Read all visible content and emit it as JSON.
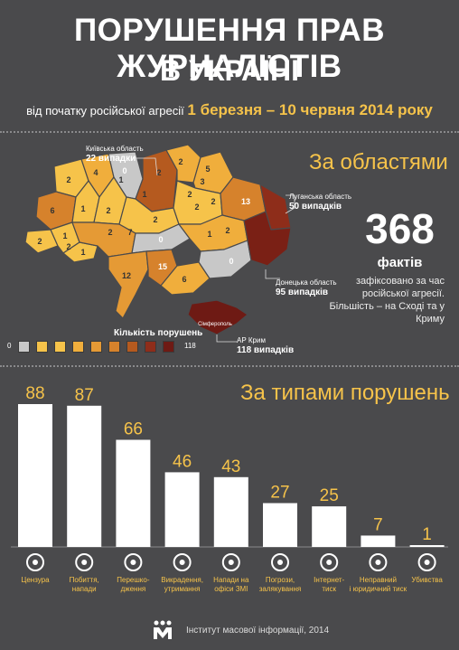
{
  "header": {
    "title_line1": "ПОРУШЕННЯ ПРАВ ЖУРНАЛІСТІВ",
    "title_line2": "В УКРАЇНІ",
    "subtitle_prefix": "від початку російської агресії",
    "subtitle_dates": "1 березня – 10 червня 2014 року"
  },
  "map_section": {
    "title": "За областями",
    "region_values": [
      "2",
      "4",
      "1",
      "0",
      "2",
      "6",
      "1",
      "2",
      "5",
      "3",
      "2",
      "2",
      "2",
      "2",
      "0",
      "1",
      "2",
      "2",
      "1",
      "7",
      "2",
      "13",
      "1",
      "1",
      "2",
      "2",
      "6",
      "12",
      "15",
      "0"
    ],
    "callouts": {
      "kyiv": {
        "label": "Київська область",
        "value": "22 випадки"
      },
      "luhansk": {
        "label": "Луганська область",
        "value": "50 випадків"
      },
      "donetsk": {
        "label": "Донецька область",
        "value": "95 випадків"
      },
      "crimea": {
        "label": "АР Крим",
        "value": "118 випадків"
      }
    },
    "small_labels": {
      "simferopol": "Сімферополь"
    },
    "total": {
      "number": "368",
      "unit": "фактів",
      "desc": "зафіксовано за час російської агресії. Більшість – на Сході та у Криму"
    },
    "legend": {
      "title": "Кількість порушень",
      "min": "0",
      "max": "118",
      "colors": [
        "#c8c8c8",
        "#f6c34a",
        "#f6c34a",
        "#f0ae3c",
        "#e59a35",
        "#d6822c",
        "#b55a1f",
        "#8e2d1a",
        "#6e1a14"
      ]
    }
  },
  "types_section": {
    "title": "За типами порушень",
    "icons": [
      "phone-icon",
      "fight-icon",
      "camera-icon",
      "handcuffs-icon",
      "office-icon",
      "fist-icon",
      "computer-icon",
      "gavel-icon",
      "pistol-icon"
    ]
  },
  "chart_data": {
    "type": "bar",
    "title": "За типами порушень",
    "categories": [
      "Цензура",
      "Побиття, напади",
      "Перешко-дження",
      "Викрадення, утримання",
      "Напади на офіси ЗМІ",
      "Погрози, залякування",
      "Інтернет-тиск",
      "Неправний і юридичний тиск",
      "Убивства"
    ],
    "category_lines": [
      [
        "Цензура"
      ],
      [
        "Побиття,",
        "напади"
      ],
      [
        "Перешко-",
        "дження"
      ],
      [
        "Викрадення,",
        "утримання"
      ],
      [
        "Напади на",
        "офіси ЗМІ"
      ],
      [
        "Погрози,",
        "залякування"
      ],
      [
        "Інтернет-",
        "тиск"
      ],
      [
        "Неправний",
        "і юридичний тиск"
      ],
      [
        "Убивства"
      ]
    ],
    "values": [
      88,
      87,
      66,
      46,
      43,
      27,
      25,
      7,
      1
    ],
    "value_labels": [
      "88",
      "87",
      "66",
      "46",
      "43",
      "27",
      "25",
      "7",
      "1"
    ],
    "ylim": [
      0,
      88
    ],
    "grid": false,
    "xlabel": "",
    "ylabel": ""
  },
  "footer": {
    "org": "Інститут масової інформації, 2014"
  }
}
